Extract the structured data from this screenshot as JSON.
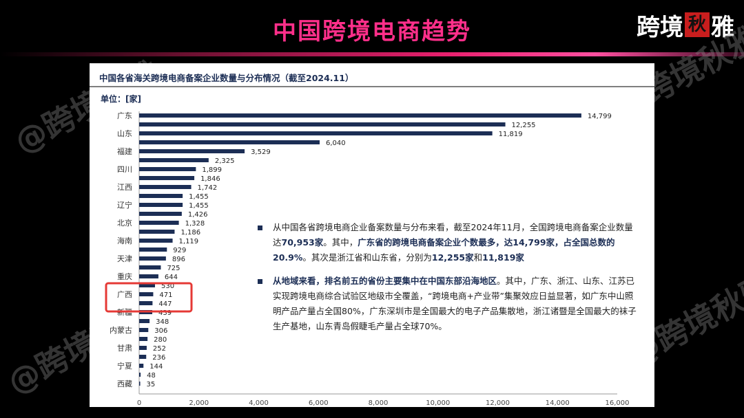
{
  "header": {
    "title": "中国跨境电商趋势",
    "brand": "跨境",
    "brand_stamp": "秋",
    "brand_tail": "雅"
  },
  "watermark": "@跨境秋雅",
  "chart_data": {
    "type": "bar",
    "orientation": "horizontal",
    "title": "中国各省海关跨境电商备案企业数量与分布情况（截至2024.11）",
    "unit_label": "单位：[家]",
    "categories": [
      "广东",
      "",
      "山东",
      "",
      "福建",
      "",
      "四川",
      "",
      "江西",
      "",
      "辽宁",
      "",
      "北京",
      "",
      "海南",
      "",
      "天津",
      "",
      "重庆",
      "",
      "广西",
      "",
      "新疆",
      "",
      "内蒙古",
      "",
      "甘肃",
      "",
      "宁夏",
      "",
      "西藏"
    ],
    "values": [
      14799,
      12255,
      11819,
      6040,
      3529,
      2325,
      1899,
      1846,
      1742,
      1455,
      1455,
      1426,
      1328,
      1186,
      1119,
      929,
      896,
      725,
      644,
      530,
      471,
      447,
      439,
      348,
      306,
      280,
      252,
      236,
      144,
      48,
      35
    ],
    "value_labels": [
      "14,799",
      "12,255",
      "11,819",
      "6,040",
      "3,529",
      "2,325",
      "1,899",
      "1,846",
      "1,742",
      "1,455",
      "1,455",
      "1,426",
      "1,328",
      "1,186",
      "1,119",
      "929",
      "896",
      "725",
      "644",
      "530",
      "471",
      "447",
      "439",
      "348",
      "306",
      "280",
      "252",
      "236",
      "144",
      "48",
      "35"
    ],
    "xlim": [
      0,
      16000
    ],
    "xticks": [
      "0",
      "2,000",
      "4,000",
      "6,000",
      "8,000",
      "10,000",
      "12,000",
      "14,000",
      "16,000"
    ],
    "xtick_values": [
      0,
      2000,
      4000,
      6000,
      8000,
      10000,
      12000,
      14000,
      16000
    ],
    "bar_color": "#1c2e55",
    "highlight": {
      "label": "广西",
      "color": "#e53935"
    },
    "grid": false
  },
  "notes": [
    {
      "segments": [
        {
          "t": "从中国各省跨境电商企业备案数量与分布来看，截至2024年11月，全国跨境电商备案企业数量达",
          "b": false
        },
        {
          "t": "70,953家",
          "b": true
        },
        {
          "t": "。其中，",
          "b": false
        },
        {
          "t": "广东省的跨境电商备案企业个数最多，达14,799家，占全国总数的20.9%",
          "b": true
        },
        {
          "t": "。其次是浙江省和山东省，分别为",
          "b": false
        },
        {
          "t": "12,255家",
          "b": true
        },
        {
          "t": "和",
          "b": false
        },
        {
          "t": "11,819家",
          "b": true
        }
      ]
    },
    {
      "segments": [
        {
          "t": "从地域来看，排名前五的省份主要集中在中国东部沿海地区",
          "b": true
        },
        {
          "t": "。其中，广东、浙江、山东、江苏已实现跨境电商综合试验区地级市全覆盖，“跨境电商+产业带”集聚效应日益显著，如广东中山照明产品产量占全国80%，广东深圳市是全国最大的电子产品集散地，浙江诸暨是全国最大的袜子生产基地，山东青岛假睫毛产量占全球70%。",
          "b": false
        }
      ]
    }
  ]
}
